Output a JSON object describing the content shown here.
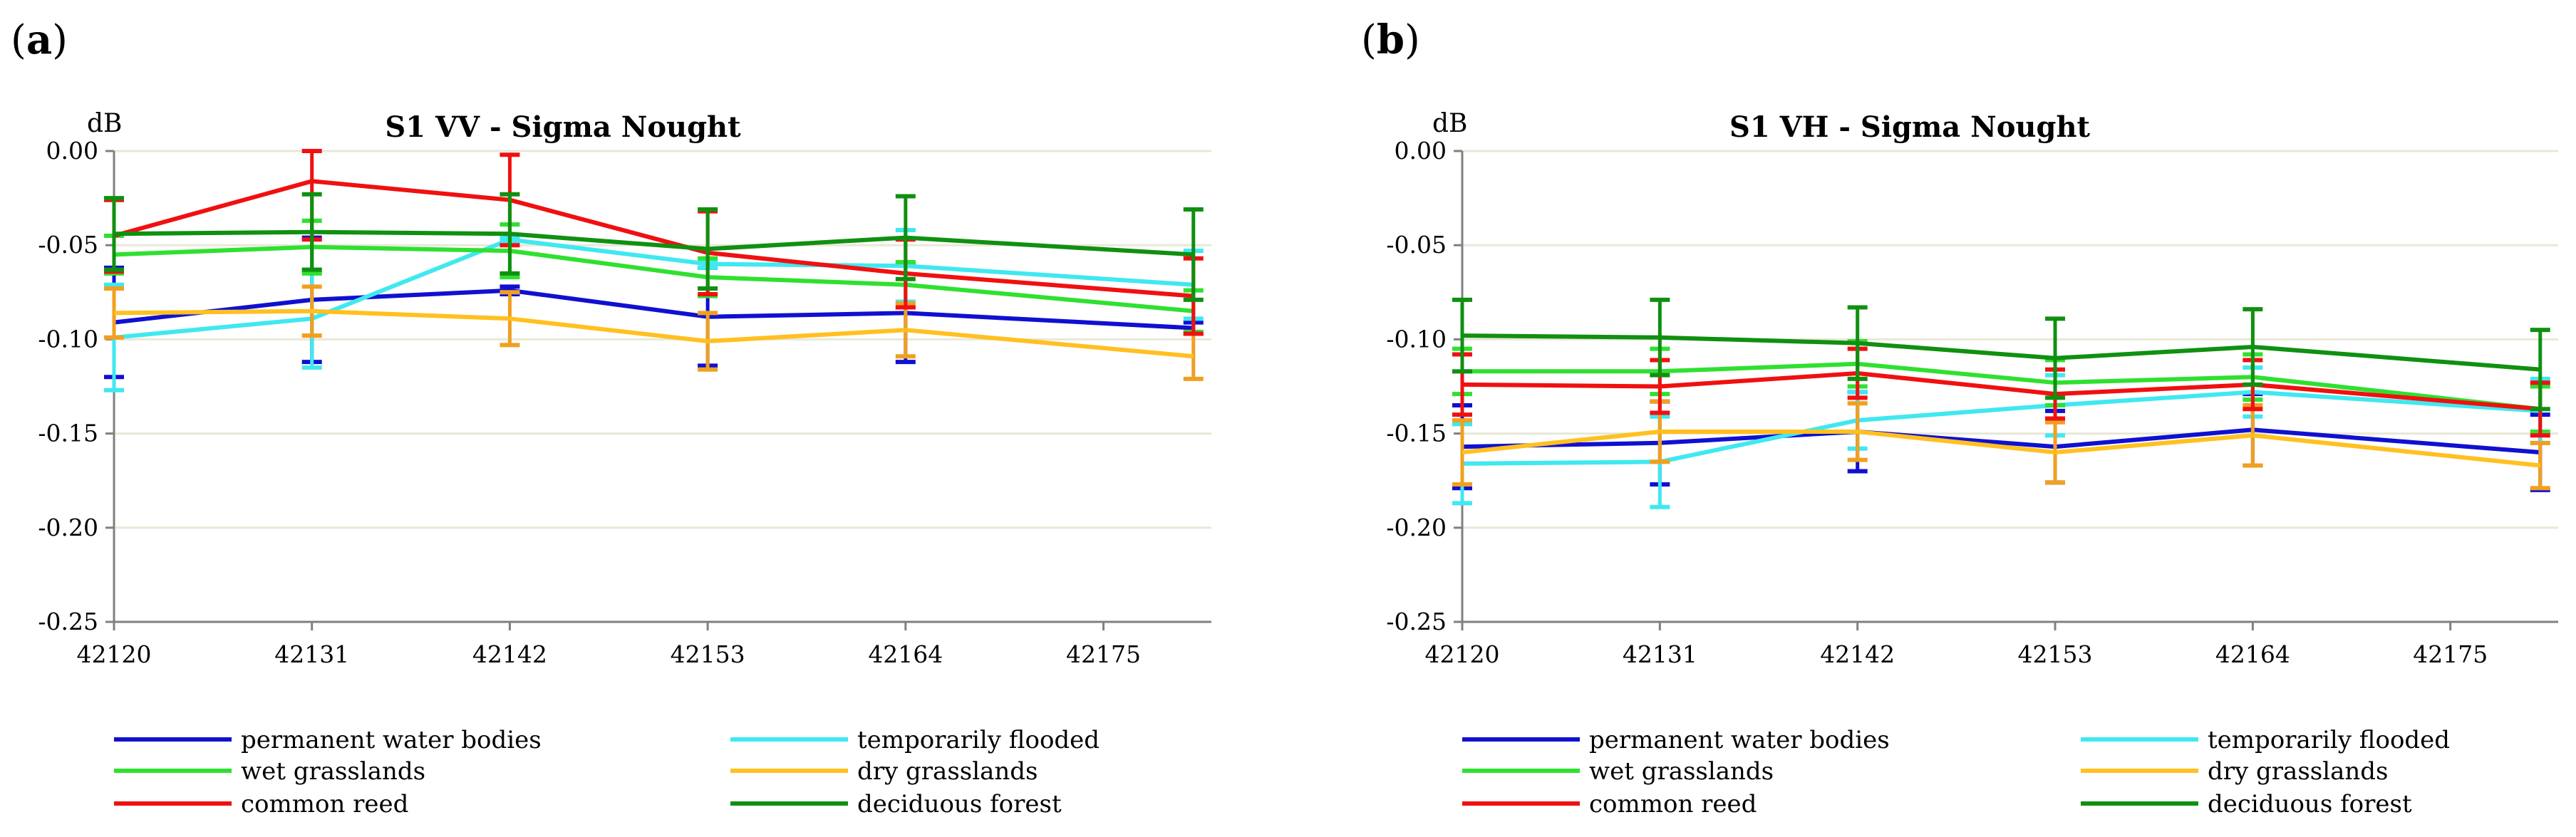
{
  "colors": {
    "permanent": "#1010d0",
    "temporary": "#40e8f0",
    "wet": "#30e030",
    "dry": "#ffc020",
    "reed": "#f01010",
    "forest": "#109010",
    "dry_err": "#f0a020"
  },
  "chart_data": [
    {
      "type": "line",
      "panel_label": "(a)",
      "panel_letter": "a",
      "title": "S1 VV - Sigma Nought",
      "ylabel": "dB",
      "xlabel": "",
      "xlim": [
        42120,
        42181
      ],
      "ylim": [
        -0.25,
        0.0
      ],
      "x_ticks": [
        "42120",
        "42131",
        "42142",
        "42153",
        "42164",
        "42175"
      ],
      "y_ticks": [
        "0.00",
        "-0.05",
        "-0.10",
        "-0.15",
        "-0.20",
        "-0.25"
      ],
      "grid": true,
      "legend_position": "bottom",
      "x": [
        42120,
        42131,
        42142,
        42153,
        42164,
        42180
      ],
      "series": [
        {
          "name": "permanent water bodies",
          "color_key": "permanent",
          "values": [
            -0.091,
            -0.079,
            -0.074,
            -0.088,
            -0.086,
            -0.094
          ],
          "err": [
            0.029,
            0.033,
            0.002,
            0.026,
            0.026,
            0.003
          ]
        },
        {
          "name": "temporarily flooded",
          "color_key": "temporary",
          "values": [
            -0.099,
            -0.089,
            -0.047,
            -0.06,
            -0.061,
            -0.071
          ],
          "err": [
            0.028,
            0.026,
            0.001,
            0.002,
            0.019,
            0.018
          ]
        },
        {
          "name": "wet grasslands",
          "color_key": "wet",
          "values": [
            -0.055,
            -0.051,
            -0.053,
            -0.067,
            -0.071,
            -0.085
          ],
          "err": [
            0.01,
            0.014,
            0.014,
            0.01,
            0.012,
            0.011
          ]
        },
        {
          "name": "dry grasslands",
          "color_key": "dry",
          "values": [
            -0.086,
            -0.085,
            -0.089,
            -0.101,
            -0.095,
            -0.109
          ],
          "err": [
            0.013,
            0.013,
            0.014,
            0.015,
            0.014,
            0.012
          ]
        },
        {
          "name": "common reed",
          "color_key": "reed",
          "values": [
            -0.045,
            -0.016,
            -0.026,
            -0.054,
            -0.065,
            -0.077
          ],
          "err": [
            0.019,
            0.031,
            0.024,
            0.022,
            0.018,
            0.02
          ]
        },
        {
          "name": "deciduous forest",
          "color_key": "forest",
          "values": [
            -0.044,
            -0.043,
            -0.044,
            -0.052,
            -0.046,
            -0.055
          ],
          "err": [
            0.019,
            0.02,
            0.021,
            0.021,
            0.022,
            0.024
          ]
        }
      ]
    },
    {
      "type": "line",
      "panel_label": "(b)",
      "panel_letter": "b",
      "title": "S1 VH - Sigma Nought",
      "ylabel": "dB",
      "xlabel": "",
      "xlim": [
        42120,
        42181
      ],
      "ylim": [
        -0.25,
        0.0
      ],
      "x_ticks": [
        "42120",
        "42131",
        "42142",
        "42153",
        "42164",
        "42175"
      ],
      "y_ticks": [
        "0.00",
        "-0.05",
        "-0.10",
        "-0.15",
        "-0.20",
        "-0.25"
      ],
      "grid": true,
      "legend_position": "bottom",
      "x": [
        42120,
        42131,
        42142,
        42153,
        42164,
        42180
      ],
      "series": [
        {
          "name": "permanent water bodies",
          "color_key": "permanent",
          "values": [
            -0.157,
            -0.155,
            -0.149,
            -0.157,
            -0.148,
            -0.16
          ],
          "err": [
            0.022,
            0.022,
            0.021,
            0.019,
            0.019,
            0.02
          ]
        },
        {
          "name": "temporarily flooded",
          "color_key": "temporary",
          "values": [
            -0.166,
            -0.165,
            -0.143,
            -0.135,
            -0.128,
            -0.138
          ],
          "err": [
            0.021,
            0.024,
            0.015,
            0.016,
            0.013,
            0.017
          ]
        },
        {
          "name": "wet grasslands",
          "color_key": "wet",
          "values": [
            -0.117,
            -0.117,
            -0.113,
            -0.123,
            -0.12,
            -0.137
          ],
          "err": [
            0.012,
            0.012,
            0.012,
            0.012,
            0.012,
            0.012
          ]
        },
        {
          "name": "dry grasslands",
          "color_key": "dry",
          "values": [
            -0.16,
            -0.149,
            -0.149,
            -0.16,
            -0.151,
            -0.167
          ],
          "err": [
            0.017,
            0.016,
            0.015,
            0.016,
            0.016,
            0.012
          ]
        },
        {
          "name": "common reed",
          "color_key": "reed",
          "values": [
            -0.124,
            -0.125,
            -0.118,
            -0.129,
            -0.124,
            -0.137
          ],
          "err": [
            0.016,
            0.014,
            0.013,
            0.013,
            0.013,
            0.014
          ]
        },
        {
          "name": "deciduous forest",
          "color_key": "forest",
          "values": [
            -0.098,
            -0.099,
            -0.102,
            -0.11,
            -0.104,
            -0.116
          ],
          "err": [
            0.019,
            0.02,
            0.019,
            0.021,
            0.02,
            0.021
          ]
        }
      ]
    }
  ]
}
